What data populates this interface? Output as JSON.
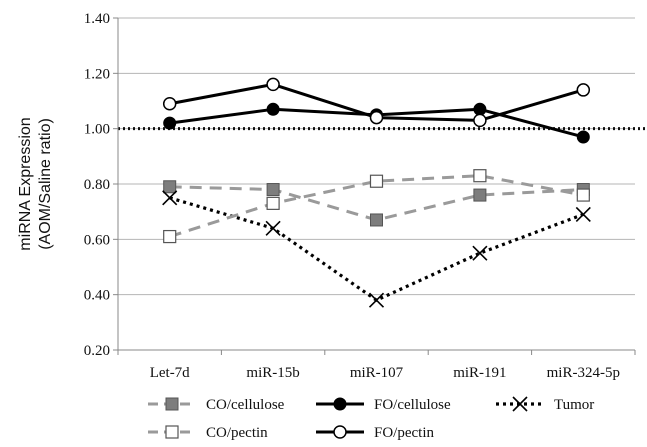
{
  "chart_data": {
    "type": "line",
    "title": "",
    "xlabel": "",
    "ylabel_line1": "miRNA Expression",
    "ylabel_line2": "(AOM/Saline ratio)",
    "ylim": [
      0.2,
      1.4
    ],
    "yticks": [
      "0.20",
      "0.40",
      "0.60",
      "0.80",
      "1.00",
      "1.20",
      "1.40"
    ],
    "grid": true,
    "legend_placement": "bottom",
    "reference_line": {
      "y": 1.0,
      "style": "dotted"
    },
    "categories": [
      "Let-7d",
      "miR-15b",
      "miR-107",
      "miR-191",
      "miR-324-5p"
    ],
    "series": [
      {
        "name": "CO/cellulose",
        "values": [
          0.79,
          0.78,
          0.67,
          0.76,
          0.78
        ],
        "color": "#9a9a9a",
        "line": "dashed",
        "marker": "square-filled"
      },
      {
        "name": "FO/cellulose",
        "values": [
          1.02,
          1.07,
          1.05,
          1.07,
          0.97
        ],
        "color": "#000000",
        "line": "solid",
        "marker": "circle-filled"
      },
      {
        "name": "Tumor",
        "values": [
          0.75,
          0.64,
          0.38,
          0.55,
          0.69
        ],
        "color": "#000000",
        "line": "dotted",
        "marker": "x"
      },
      {
        "name": "CO/pectin",
        "values": [
          0.61,
          0.73,
          0.81,
          0.83,
          0.76
        ],
        "color": "#9a9a9a",
        "line": "dashed",
        "marker": "square-open"
      },
      {
        "name": "FO/pectin",
        "values": [
          1.09,
          1.16,
          1.04,
          1.03,
          1.14
        ],
        "color": "#000000",
        "line": "solid",
        "marker": "circle-open"
      }
    ]
  }
}
